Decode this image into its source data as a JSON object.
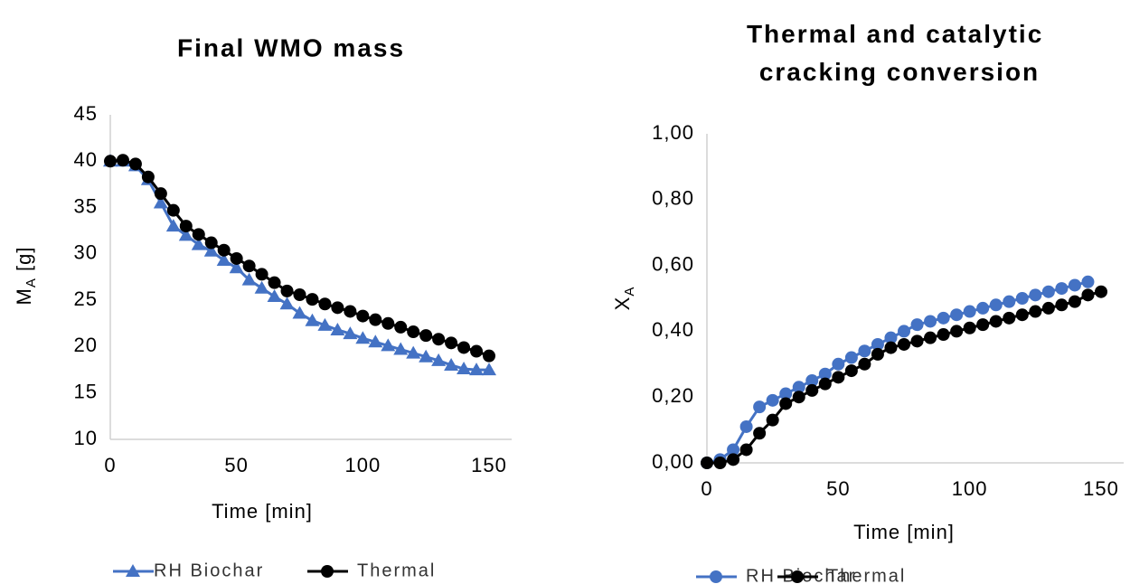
{
  "chart_data": [
    {
      "type": "line",
      "title": "Final WMO mass",
      "xlabel": "Time [min]",
      "ylabel": {
        "text": "M",
        "subscript": "A",
        "suffix": " [g]"
      },
      "x": [
        0,
        5,
        10,
        15,
        20,
        25,
        30,
        35,
        40,
        45,
        50,
        55,
        60,
        65,
        70,
        75,
        80,
        85,
        90,
        95,
        100,
        105,
        110,
        115,
        120,
        125,
        130,
        135,
        140,
        145,
        150
      ],
      "series": [
        {
          "name": "RH Biochar",
          "color": "#4472c4",
          "marker": "triangle",
          "values": [
            40,
            40,
            39.5,
            38,
            35.5,
            33,
            32,
            31,
            30.3,
            29.3,
            28.5,
            27.2,
            26.3,
            25.4,
            24.6,
            23.6,
            22.8,
            22.3,
            21.8,
            21.4,
            20.9,
            20.5,
            20.1,
            19.7,
            19.3,
            18.9,
            18.5,
            18,
            17.6,
            17.5,
            17.5
          ]
        },
        {
          "name": "Thermal",
          "color": "#000000",
          "marker": "circle",
          "values": [
            40,
            40.1,
            39.7,
            38.3,
            36.5,
            34.7,
            33,
            32.1,
            31.2,
            30.4,
            29.5,
            28.7,
            27.8,
            26.9,
            26,
            25.6,
            25.1,
            24.6,
            24.2,
            23.8,
            23.3,
            22.9,
            22.5,
            22.1,
            21.6,
            21.2,
            20.8,
            20.4,
            19.9,
            19.5,
            19
          ]
        }
      ],
      "xlim": [
        0,
        150
      ],
      "xticks": [
        0,
        50,
        100,
        150
      ],
      "ylim": [
        10,
        45
      ],
      "yticks": [
        10,
        15,
        20,
        25,
        30,
        35,
        40,
        45
      ],
      "grid": false,
      "legend": "bottom"
    },
    {
      "type": "line",
      "title": "Thermal and catalytic cracking conversion",
      "xlabel": "Time [min]",
      "ylabel": {
        "text": "X",
        "subscript": "A",
        "suffix": ""
      },
      "x": [
        0,
        5,
        10,
        15,
        20,
        25,
        30,
        35,
        40,
        45,
        50,
        55,
        60,
        65,
        70,
        75,
        80,
        85,
        90,
        95,
        100,
        105,
        110,
        115,
        120,
        125,
        130,
        135,
        140,
        145,
        150
      ],
      "series": [
        {
          "name": "RH Biochar",
          "color": "#4472c4",
          "marker": "circle",
          "values": [
            0,
            0.01,
            0.04,
            0.11,
            0.17,
            0.19,
            0.21,
            0.23,
            0.25,
            0.27,
            0.3,
            0.32,
            0.34,
            0.36,
            0.38,
            0.4,
            0.42,
            0.43,
            0.44,
            0.45,
            0.46,
            0.47,
            0.48,
            0.49,
            0.5,
            0.51,
            0.52,
            0.53,
            0.54,
            0.55,
            null
          ]
        },
        {
          "name": "Thermal",
          "color": "#000000",
          "marker": "circle",
          "values": [
            0,
            0,
            0.01,
            0.04,
            0.09,
            0.13,
            0.18,
            0.2,
            0.22,
            0.24,
            0.26,
            0.28,
            0.3,
            0.33,
            0.35,
            0.36,
            0.37,
            0.38,
            0.39,
            0.4,
            0.41,
            0.42,
            0.43,
            0.44,
            0.45,
            0.46,
            0.47,
            0.48,
            0.49,
            0.51,
            0.52
          ]
        }
      ],
      "xlim": [
        0,
        150
      ],
      "xticks": [
        0,
        50,
        100,
        150
      ],
      "ylim": [
        0,
        1
      ],
      "yticks": [
        {
          "value": 0,
          "label": "0,00"
        },
        {
          "value": 0.2,
          "label": "0,20"
        },
        {
          "value": 0.4,
          "label": "0,40"
        },
        {
          "value": 0.6,
          "label": "0,60"
        },
        {
          "value": 0.8,
          "label": "0,80"
        },
        {
          "value": 1,
          "label": "1,00"
        }
      ],
      "grid": false,
      "legend": "bottom"
    }
  ]
}
